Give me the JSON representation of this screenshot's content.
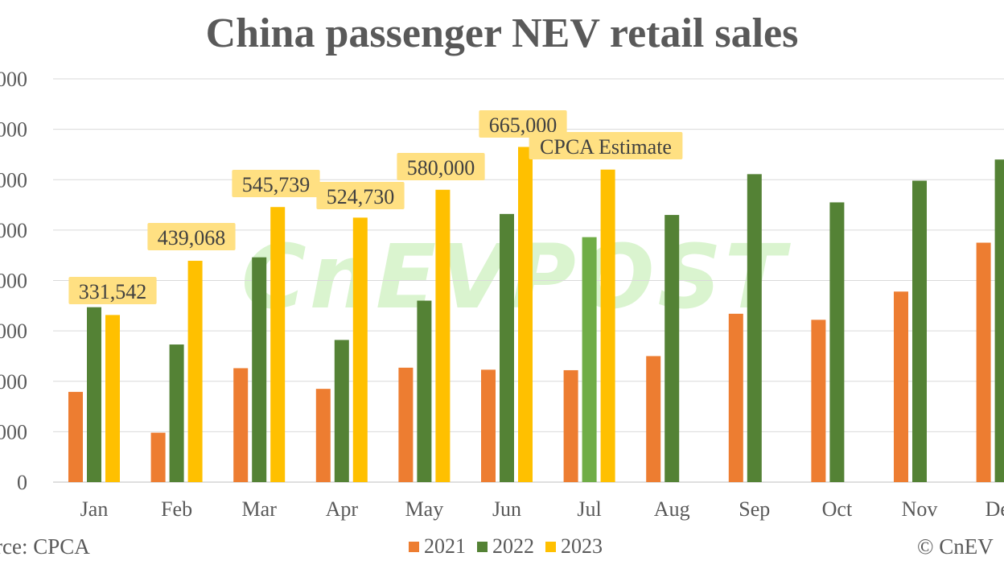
{
  "chart_data": {
    "type": "bar",
    "title": "China passenger NEV retail sales",
    "categories": [
      "Jan",
      "Feb",
      "Mar",
      "Apr",
      "May",
      "Jun",
      "Jul",
      "Aug",
      "Sep",
      "Oct",
      "Nov",
      "Dec"
    ],
    "y_tick_labels": [
      "0",
      "000",
      "000",
      "000",
      "000",
      "000",
      "000",
      "000",
      "000"
    ],
    "ylim": [
      0,
      800000
    ],
    "y_ticks": [
      0,
      100000,
      200000,
      300000,
      400000,
      500000,
      600000,
      700000,
      800000
    ],
    "series": [
      {
        "name": "2021",
        "color": "#ed7d31",
        "values": [
          179000,
          98000,
          226000,
          185000,
          227000,
          223000,
          222000,
          250000,
          334000,
          322000,
          378000,
          475000
        ]
      },
      {
        "name": "2022",
        "color": "#548235",
        "values": [
          347000,
          273000,
          446000,
          282000,
          360000,
          532000,
          null,
          530000,
          611000,
          555000,
          598000,
          640000
        ]
      },
      {
        "name": "2023",
        "color": "#ffc000",
        "values": [
          331542,
          439068,
          545739,
          524730,
          580000,
          665000,
          620000,
          null,
          null,
          null,
          null,
          null
        ]
      }
    ],
    "jul_2022_value": 486000,
    "jul_2022_color": "#70ad47",
    "data_labels": [
      {
        "category": "Jan",
        "text": "331,542"
      },
      {
        "category": "Feb",
        "text": "439,068"
      },
      {
        "category": "Mar",
        "text": "545,739"
      },
      {
        "category": "Apr",
        "text": "524,730"
      },
      {
        "category": "May",
        "text": "580,000"
      },
      {
        "category": "Jun",
        "text": "665,000"
      },
      {
        "category": "Jul",
        "text": "CPCA Estimate"
      }
    ],
    "grid": true,
    "legend_position": "bottom"
  },
  "source_note": "rce: CPCA",
  "copyright_note": "© CnEV",
  "watermark": "CnEVPOST",
  "legend": [
    {
      "label": "2021",
      "color": "#ed7d31"
    },
    {
      "label": "2022",
      "color": "#548235"
    },
    {
      "label": "2023",
      "color": "#ffc000"
    }
  ]
}
